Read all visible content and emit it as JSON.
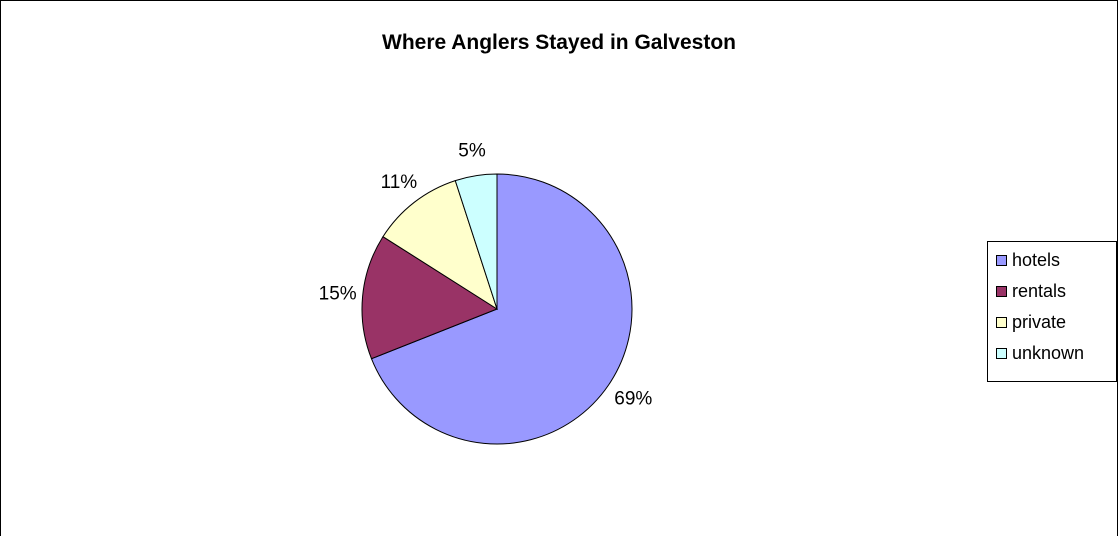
{
  "chart_data": {
    "type": "pie",
    "title": "Where Anglers Stayed in Galveston",
    "categories": [
      "hotels",
      "rentals",
      "private",
      "unknown"
    ],
    "values": [
      69,
      15,
      11,
      5
    ],
    "labels": [
      "69%",
      "15%",
      "11%",
      "5%"
    ],
    "colors": [
      "#9999ff",
      "#993366",
      "#ffffcc",
      "#ccffff"
    ],
    "legend_position": "right"
  }
}
